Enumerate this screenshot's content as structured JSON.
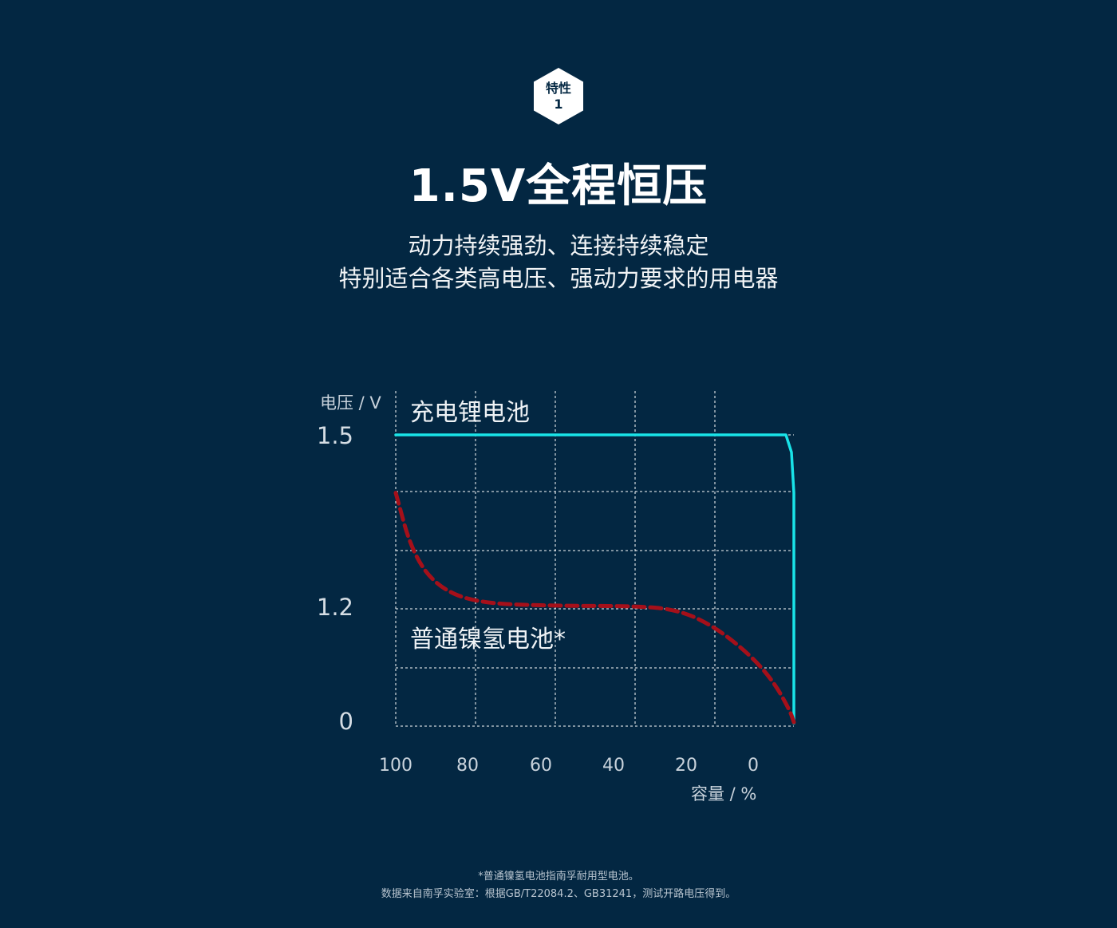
{
  "badge": {
    "label": "特性",
    "number": "1"
  },
  "title": "1.5V全程恒压",
  "subtitle": [
    "动力持续强劲、连接持续稳定",
    "特别适合各类高电压、强动力要求的用电器"
  ],
  "chart_data": {
    "type": "line",
    "ylabel": "电压 / V",
    "xlabel": "容量 / %",
    "x_ticks": [
      "100",
      "80",
      "60",
      "40",
      "20",
      "0"
    ],
    "y_ticks": [
      "1.5",
      "1.2",
      "0"
    ],
    "x_direction": "reversed",
    "grid": true,
    "series": [
      {
        "name": "充电锂电池",
        "color": "#19e3e8",
        "style": "solid",
        "x": [
          100,
          2,
          0.6,
          0,
          0
        ],
        "y": [
          1.5,
          1.5,
          1.47,
          1.4,
          0.03
        ]
      },
      {
        "name": "普通镍氢电池*",
        "color": "#a5101a",
        "style": "dashed",
        "x": [
          100,
          96,
          90,
          80,
          60,
          40,
          29,
          20,
          11,
          5,
          1,
          0
        ],
        "y": [
          1.4,
          1.3,
          1.24,
          1.21,
          1.205,
          1.205,
          1.19,
          1.02,
          0.73,
          0.45,
          0.16,
          0.04
        ]
      }
    ]
  },
  "footnote": [
    "*普通镍氢电池指南孚耐用型电池。",
    "数据来自南孚实验室：根据GB/T22084.2、GB31241，测试开路电压得到。"
  ]
}
